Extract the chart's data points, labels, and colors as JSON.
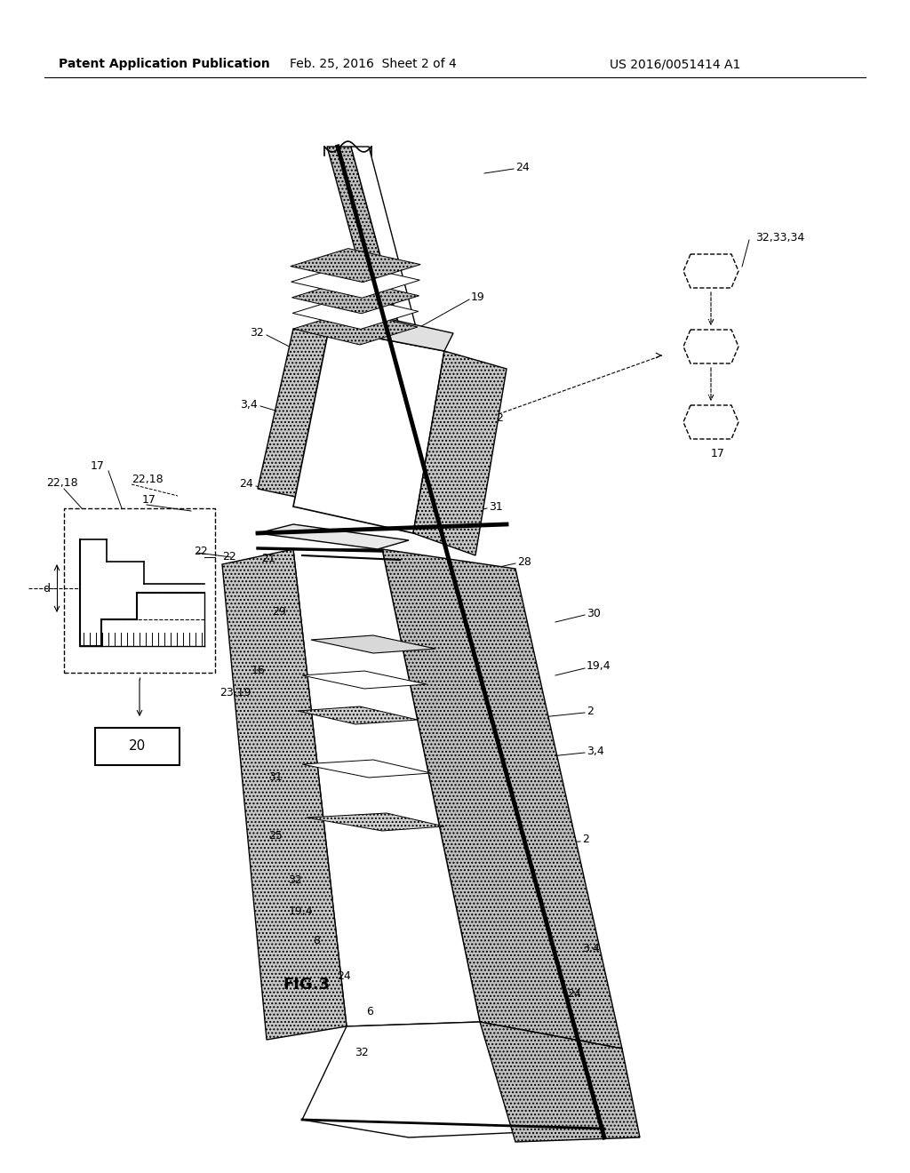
{
  "bg_color": "#ffffff",
  "line_color": "#000000",
  "header_left": "Patent Application Publication",
  "header_mid": "Feb. 25, 2016  Sheet 2 of 4",
  "header_right": "US 2016/0051414 A1",
  "fig_label": "FIG.3",
  "title_fontsize": 11,
  "label_fontsize": 9,
  "gray_fill": "#c8c8c8",
  "light_gray": "#e8e8e8"
}
